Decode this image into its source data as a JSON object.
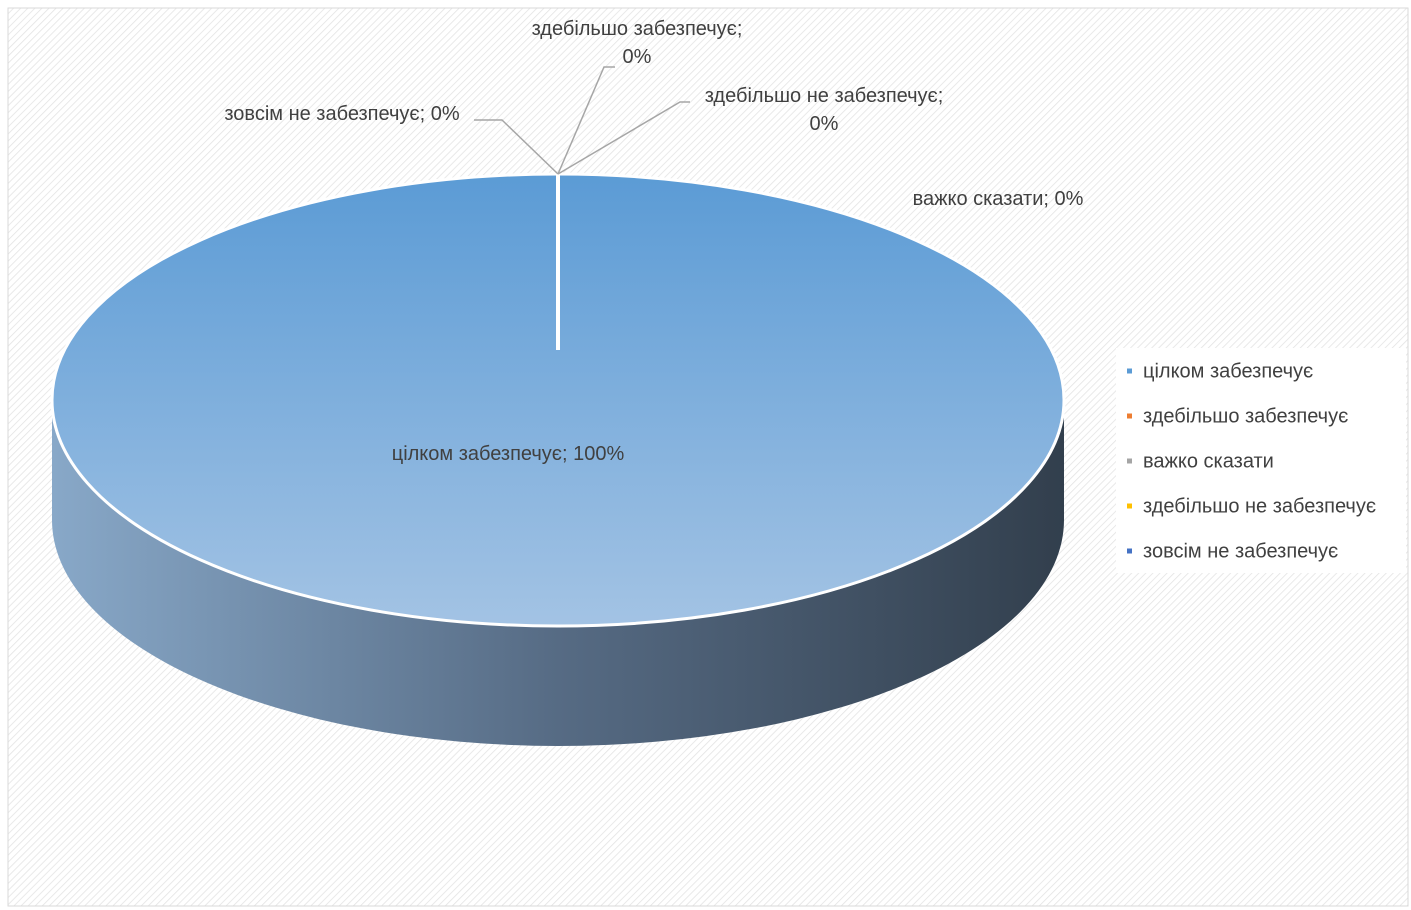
{
  "colors": {
    "series": [
      "#5b9bd5",
      "#ed7d31",
      "#a5a5a5",
      "#ffc000",
      "#4472c4"
    ],
    "text": "#404040",
    "leader": "#a6a6a6"
  },
  "chart_data": {
    "type": "pie",
    "variant": "3d",
    "title": "",
    "legend_position": "right",
    "slices": [
      {
        "name": "цілком забезпечує",
        "value": 100,
        "label": "цілком забезпечує; 100%"
      },
      {
        "name": "здебільшо забезпечує",
        "value": 0,
        "label_lines": [
          "здебільшо забезпечує;",
          "0%"
        ]
      },
      {
        "name": "важко сказати",
        "value": 0,
        "label": "важко сказати; 0%"
      },
      {
        "name": "здебільшо не забезпечує",
        "value": 0,
        "label_lines": [
          "здебільшо не забезпечує;",
          "0%"
        ]
      },
      {
        "name": "зовсім не забезпечує",
        "value": 0,
        "label": "зовсім не забезпечує; 0%"
      }
    ]
  }
}
